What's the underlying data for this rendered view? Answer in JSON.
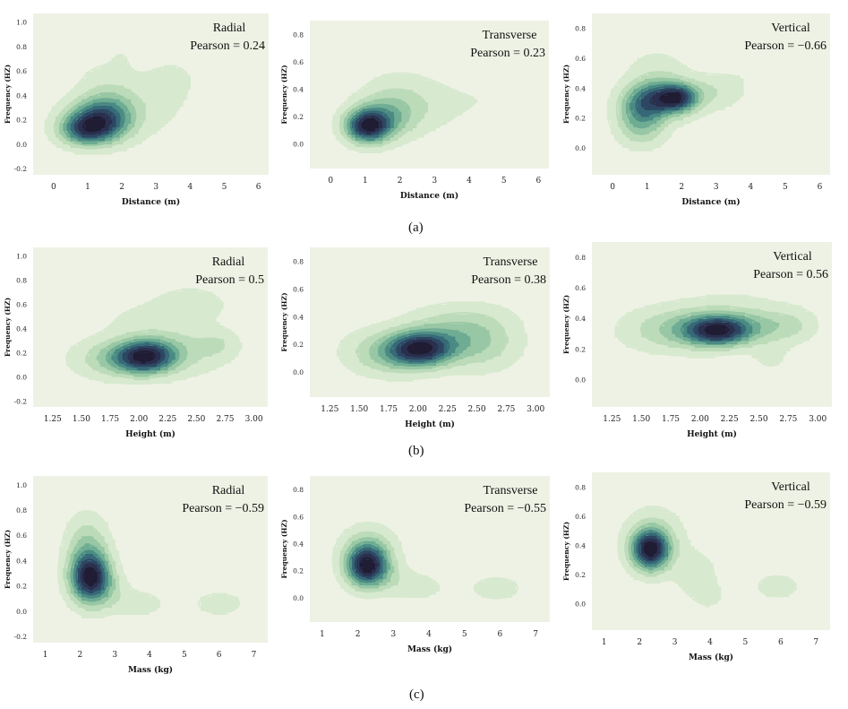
{
  "figure": {
    "row_labels": [
      "(a)",
      "(b)",
      "(c)"
    ],
    "palette": {
      "plot_background": "#eef2e4",
      "levels": [
        "#d7e9cf",
        "#bcdbb9",
        "#97c7a4",
        "#6eac93",
        "#4a8a84",
        "#366877",
        "#2d4763",
        "#2a2f4d",
        "#1f1c33"
      ]
    }
  },
  "chart_data": [
    {
      "type": "kde_contour",
      "row": "a",
      "title": "Radial",
      "annotation": "Pearson = 0.24",
      "xlabel": "Distance (m)",
      "ylabel": "Frequency (HZ)",
      "xlim": [
        -0.6,
        6.3
      ],
      "ylim": [
        -0.25,
        1.07
      ],
      "xticks": [
        0,
        1,
        2,
        3,
        4,
        5,
        6
      ],
      "xtick_labels": [
        "0",
        "1",
        "2",
        "3",
        "4",
        "5",
        "6"
      ],
      "yticks": [
        -0.2,
        0,
        0.2,
        0.4,
        0.6,
        0.8,
        1.0
      ],
      "ytick_labels": [
        "-0.2",
        "0.0",
        "0.2",
        "0.4",
        "0.6",
        "0.8",
        "1.0"
      ],
      "density_peaks": [
        {
          "x": 1.25,
          "y": 0.19,
          "sx": 0.62,
          "sy": 0.11,
          "w": 1.0
        },
        {
          "x": 0.9,
          "y": 0.11,
          "sx": 0.5,
          "sy": 0.08,
          "w": 0.7
        },
        {
          "x": 1.7,
          "y": 0.26,
          "sx": 0.55,
          "sy": 0.14,
          "w": 0.38
        },
        {
          "x": 2.9,
          "y": 0.35,
          "sx": 0.8,
          "sy": 0.2,
          "w": 0.15
        },
        {
          "x": 1.4,
          "y": 0.48,
          "sx": 0.6,
          "sy": 0.18,
          "w": 0.12
        },
        {
          "x": 3.6,
          "y": 0.55,
          "sx": 0.5,
          "sy": 0.12,
          "w": 0.08
        },
        {
          "x": 2.0,
          "y": 0.72,
          "sx": 0.25,
          "sy": 0.08,
          "w": 0.06
        }
      ]
    },
    {
      "type": "kde_contour",
      "row": "a",
      "title": "Transverse",
      "annotation": "Pearson = 0.23",
      "xlabel": "Distance (m)",
      "ylabel": "Frequency (HZ)",
      "xlim": [
        -0.6,
        6.3
      ],
      "ylim": [
        -0.18,
        0.9
      ],
      "xticks": [
        0,
        1,
        2,
        3,
        4,
        5,
        6
      ],
      "xtick_labels": [
        "0",
        "1",
        "2",
        "3",
        "4",
        "5",
        "6"
      ],
      "yticks": [
        0,
        0.2,
        0.4,
        0.6,
        0.8
      ],
      "ytick_labels": [
        "0.0",
        "0.2",
        "0.4",
        "0.6",
        "0.8"
      ],
      "density_peaks": [
        {
          "x": 1.05,
          "y": 0.13,
          "sx": 0.42,
          "sy": 0.08,
          "w": 1.0
        },
        {
          "x": 1.6,
          "y": 0.2,
          "sx": 0.6,
          "sy": 0.11,
          "w": 0.42
        },
        {
          "x": 2.8,
          "y": 0.28,
          "sx": 0.8,
          "sy": 0.13,
          "w": 0.13
        },
        {
          "x": 1.9,
          "y": 0.4,
          "sx": 0.7,
          "sy": 0.12,
          "w": 0.09
        },
        {
          "x": 4.4,
          "y": 0.32,
          "sx": 0.6,
          "sy": 0.09,
          "w": 0.05
        }
      ]
    },
    {
      "type": "kde_contour",
      "row": "a",
      "title": "Vertical",
      "annotation": "Pearson = −0.66",
      "xlabel": "Distance (m)",
      "ylabel": "Frequency (HZ)",
      "xlim": [
        -0.6,
        6.3
      ],
      "ylim": [
        -0.18,
        0.9
      ],
      "xticks": [
        0,
        1,
        2,
        3,
        4,
        5,
        6
      ],
      "xtick_labels": [
        "0",
        "1",
        "2",
        "3",
        "4",
        "5",
        "6"
      ],
      "yticks": [
        0,
        0.2,
        0.4,
        0.6,
        0.8
      ],
      "ytick_labels": [
        "0.0",
        "0.2",
        "0.4",
        "0.6",
        "0.8"
      ],
      "density_peaks": [
        {
          "x": 1.55,
          "y": 0.33,
          "sx": 0.6,
          "sy": 0.08,
          "w": 1.0
        },
        {
          "x": 0.8,
          "y": 0.24,
          "sx": 0.45,
          "sy": 0.11,
          "w": 0.65
        },
        {
          "x": 1.9,
          "y": 0.34,
          "sx": 0.35,
          "sy": 0.05,
          "w": 0.55
        },
        {
          "x": 3.0,
          "y": 0.38,
          "sx": 0.6,
          "sy": 0.08,
          "w": 0.2
        },
        {
          "x": 4.2,
          "y": 0.52,
          "sx": 0.6,
          "sy": 0.06,
          "w": 0.07
        },
        {
          "x": 1.3,
          "y": 0.52,
          "sx": 0.6,
          "sy": 0.1,
          "w": 0.16
        },
        {
          "x": 0.9,
          "y": 0.1,
          "sx": 0.5,
          "sy": 0.08,
          "w": 0.15
        }
      ]
    },
    {
      "type": "kde_contour",
      "row": "b",
      "title": "Radial",
      "annotation": "Pearson = 0.5",
      "xlabel": "Height (m)",
      "ylabel": "Frequency (HZ)",
      "xlim": [
        1.08,
        3.12
      ],
      "ylim": [
        -0.25,
        1.07
      ],
      "xticks": [
        1.25,
        1.5,
        1.75,
        2.0,
        2.25,
        2.5,
        2.75,
        3.0
      ],
      "xtick_labels": [
        "1.25",
        "1.50",
        "1.75",
        "2.00",
        "2.25",
        "2.50",
        "2.75",
        "3.00"
      ],
      "yticks": [
        -0.2,
        0,
        0.2,
        0.4,
        0.6,
        0.8,
        1.0
      ],
      "ytick_labels": [
        "-0.2",
        "0.0",
        "0.2",
        "0.4",
        "0.6",
        "0.8",
        "1.0"
      ],
      "density_peaks": [
        {
          "x": 2.07,
          "y": 0.17,
          "sx": 0.17,
          "sy": 0.09,
          "w": 1.0
        },
        {
          "x": 1.85,
          "y": 0.15,
          "sx": 0.2,
          "sy": 0.1,
          "w": 0.35
        },
        {
          "x": 2.4,
          "y": 0.22,
          "sx": 0.25,
          "sy": 0.14,
          "w": 0.22
        },
        {
          "x": 2.45,
          "y": 0.6,
          "sx": 0.22,
          "sy": 0.1,
          "w": 0.16
        },
        {
          "x": 2.7,
          "y": 0.27,
          "sx": 0.12,
          "sy": 0.08,
          "w": 0.14
        },
        {
          "x": 1.6,
          "y": 0.15,
          "sx": 0.22,
          "sy": 0.12,
          "w": 0.1
        },
        {
          "x": 2.0,
          "y": 0.45,
          "sx": 0.25,
          "sy": 0.12,
          "w": 0.1
        }
      ]
    },
    {
      "type": "kde_contour",
      "row": "b",
      "title": "Transverse",
      "annotation": "Pearson = 0.38",
      "xlabel": "Height (m)",
      "ylabel": "Frequency (HZ)",
      "xlim": [
        1.08,
        3.12
      ],
      "ylim": [
        -0.18,
        0.9
      ],
      "xticks": [
        1.25,
        1.5,
        1.75,
        2.0,
        2.25,
        2.5,
        2.75,
        3.0
      ],
      "xtick_labels": [
        "1.25",
        "1.50",
        "1.75",
        "2.00",
        "2.25",
        "2.50",
        "2.75",
        "3.00"
      ],
      "yticks": [
        0,
        0.2,
        0.4,
        0.6,
        0.8
      ],
      "ytick_labels": [
        "0.0",
        "0.2",
        "0.4",
        "0.6",
        "0.8"
      ],
      "density_peaks": [
        {
          "x": 2.02,
          "y": 0.17,
          "sx": 0.18,
          "sy": 0.08,
          "w": 1.0
        },
        {
          "x": 2.3,
          "y": 0.24,
          "sx": 0.28,
          "sy": 0.12,
          "w": 0.4
        },
        {
          "x": 1.8,
          "y": 0.13,
          "sx": 0.22,
          "sy": 0.1,
          "w": 0.35
        },
        {
          "x": 2.6,
          "y": 0.2,
          "sx": 0.2,
          "sy": 0.14,
          "w": 0.16
        },
        {
          "x": 1.55,
          "y": 0.16,
          "sx": 0.2,
          "sy": 0.12,
          "w": 0.1
        },
        {
          "x": 2.4,
          "y": 0.4,
          "sx": 0.3,
          "sy": 0.08,
          "w": 0.1
        }
      ]
    },
    {
      "type": "kde_contour",
      "row": "b",
      "title": "Vertical",
      "annotation": "Pearson = 0.56",
      "xlabel": "Height (m)",
      "ylabel": "Frequency (HZ)",
      "xlim": [
        1.08,
        3.12
      ],
      "ylim": [
        -0.18,
        0.9
      ],
      "xticks": [
        1.25,
        1.5,
        1.75,
        2.0,
        2.25,
        2.5,
        2.75,
        3.0
      ],
      "xtick_labels": [
        "1.25",
        "1.50",
        "1.75",
        "2.00",
        "2.25",
        "2.50",
        "2.75",
        "3.00"
      ],
      "yticks": [
        0,
        0.2,
        0.4,
        0.6,
        0.8
      ],
      "ytick_labels": [
        "0.0",
        "0.2",
        "0.4",
        "0.6",
        "0.8"
      ],
      "density_peaks": [
        {
          "x": 2.15,
          "y": 0.32,
          "sx": 0.18,
          "sy": 0.06,
          "w": 1.0
        },
        {
          "x": 2.0,
          "y": 0.33,
          "sx": 0.3,
          "sy": 0.09,
          "w": 0.45
        },
        {
          "x": 2.55,
          "y": 0.35,
          "sx": 0.25,
          "sy": 0.07,
          "w": 0.3
        },
        {
          "x": 1.6,
          "y": 0.32,
          "sx": 0.25,
          "sy": 0.1,
          "w": 0.15
        },
        {
          "x": 2.6,
          "y": 0.15,
          "sx": 0.12,
          "sy": 0.08,
          "w": 0.12
        },
        {
          "x": 2.3,
          "y": 0.47,
          "sx": 0.35,
          "sy": 0.1,
          "w": 0.1
        },
        {
          "x": 2.8,
          "y": 0.35,
          "sx": 0.12,
          "sy": 0.08,
          "w": 0.1
        }
      ]
    },
    {
      "type": "kde_contour",
      "row": "c",
      "title": "Radial",
      "annotation": "Pearson = −0.59",
      "xlabel": "Mass (kg)",
      "ylabel": "Frequency (HZ)",
      "xlim": [
        0.65,
        7.4
      ],
      "ylim": [
        -0.25,
        1.07
      ],
      "xticks": [
        1,
        2,
        3,
        4,
        5,
        6,
        7
      ],
      "xtick_labels": [
        "1",
        "2",
        "3",
        "4",
        "5",
        "6",
        "7"
      ],
      "yticks": [
        -0.2,
        0,
        0.2,
        0.4,
        0.6,
        0.8,
        1.0
      ],
      "ytick_labels": [
        "-0.2",
        "0.0",
        "0.2",
        "0.4",
        "0.6",
        "0.8",
        "1.0"
      ],
      "density_peaks": [
        {
          "x": 2.3,
          "y": 0.26,
          "sx": 0.38,
          "sy": 0.13,
          "w": 1.0
        },
        {
          "x": 2.2,
          "y": 0.5,
          "sx": 0.4,
          "sy": 0.17,
          "w": 0.3
        },
        {
          "x": 3.8,
          "y": 0.06,
          "sx": 0.4,
          "sy": 0.06,
          "w": 0.14
        },
        {
          "x": 6.0,
          "y": 0.06,
          "sx": 0.55,
          "sy": 0.07,
          "w": 0.12
        },
        {
          "x": 3.0,
          "y": 0.12,
          "sx": 0.4,
          "sy": 0.1,
          "w": 0.12
        }
      ]
    },
    {
      "type": "kde_contour",
      "row": "c",
      "title": "Transverse",
      "annotation": "Pearson = −0.55",
      "xlabel": "Mass (kg)",
      "ylabel": "Frequency (HZ)",
      "xlim": [
        0.65,
        7.4
      ],
      "ylim": [
        -0.18,
        0.9
      ],
      "xticks": [
        1,
        2,
        3,
        4,
        5,
        6,
        7
      ],
      "xtick_labels": [
        "1",
        "2",
        "3",
        "4",
        "5",
        "6",
        "7"
      ],
      "yticks": [
        0,
        0.2,
        0.4,
        0.6,
        0.8
      ],
      "ytick_labels": [
        "0.0",
        "0.2",
        "0.4",
        "0.6",
        "0.8"
      ],
      "density_peaks": [
        {
          "x": 2.25,
          "y": 0.23,
          "sx": 0.38,
          "sy": 0.1,
          "w": 1.0
        },
        {
          "x": 2.3,
          "y": 0.35,
          "sx": 0.5,
          "sy": 0.12,
          "w": 0.3
        },
        {
          "x": 3.7,
          "y": 0.08,
          "sx": 0.55,
          "sy": 0.07,
          "w": 0.12
        },
        {
          "x": 5.9,
          "y": 0.07,
          "sx": 0.55,
          "sy": 0.07,
          "w": 0.13
        },
        {
          "x": 3.0,
          "y": 0.15,
          "sx": 0.4,
          "sy": 0.08,
          "w": 0.1
        }
      ]
    },
    {
      "type": "kde_contour",
      "row": "c",
      "title": "Vertical",
      "annotation": "Pearson = −0.59",
      "xlabel": "Mass (kg)",
      "ylabel": "Frequency (HZ)",
      "xlim": [
        0.65,
        7.4
      ],
      "ylim": [
        -0.18,
        0.9
      ],
      "xticks": [
        1,
        2,
        3,
        4,
        5,
        6,
        7
      ],
      "xtick_labels": [
        "1",
        "2",
        "3",
        "4",
        "5",
        "6",
        "7"
      ],
      "yticks": [
        0,
        0.2,
        0.4,
        0.6,
        0.8
      ],
      "ytick_labels": [
        "0.0",
        "0.2",
        "0.4",
        "0.6",
        "0.8"
      ],
      "density_peaks": [
        {
          "x": 2.3,
          "y": 0.37,
          "sx": 0.35,
          "sy": 0.09,
          "w": 1.0
        },
        {
          "x": 2.4,
          "y": 0.45,
          "sx": 0.55,
          "sy": 0.14,
          "w": 0.22
        },
        {
          "x": 3.6,
          "y": 0.2,
          "sx": 0.45,
          "sy": 0.12,
          "w": 0.13
        },
        {
          "x": 4.0,
          "y": 0.05,
          "sx": 0.3,
          "sy": 0.06,
          "w": 0.08
        },
        {
          "x": 5.9,
          "y": 0.12,
          "sx": 0.45,
          "sy": 0.06,
          "w": 0.14
        }
      ]
    }
  ]
}
